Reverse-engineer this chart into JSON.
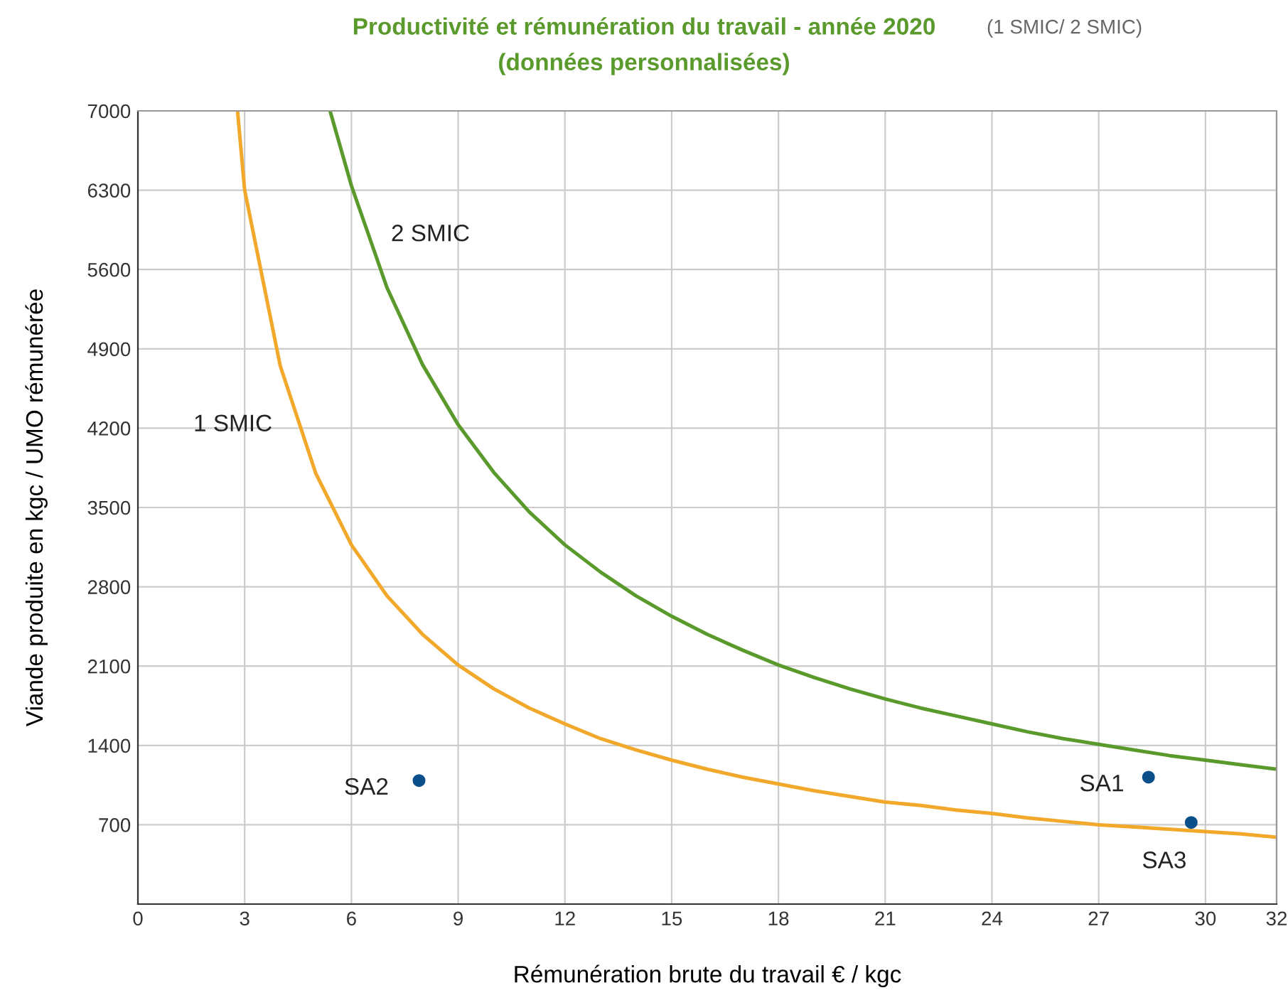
{
  "chart_data": {
    "type": "line",
    "title": "Productivité et rémunération du travail - année 2020",
    "subtitle": "(données personnalisées)",
    "xlabel": "Rémunération brute du travail € / kgc",
    "ylabel": "Viande produite en kgc / UMO rémunérée",
    "series": [
      {
        "name": "1 SMIC",
        "color": "#f2a82a",
        "x": [
          2.8,
          3,
          4,
          5,
          6,
          7,
          8,
          9,
          10,
          11,
          12,
          13,
          14,
          15,
          16,
          17,
          18,
          19,
          20,
          21,
          22,
          23,
          24,
          25,
          26,
          27,
          28,
          29,
          30,
          31,
          32
        ],
        "values": [
          7000,
          6300,
          4750,
          3800,
          3170,
          2720,
          2380,
          2110,
          1900,
          1730,
          1590,
          1460,
          1360,
          1270,
          1190,
          1120,
          1060,
          1000,
          950,
          900,
          870,
          830,
          800,
          760,
          730,
          700,
          680,
          660,
          640,
          620,
          590
        ]
      },
      {
        "name": "2 SMIC",
        "color": "#5a9a2c",
        "x": [
          5.4,
          6,
          7,
          8,
          9,
          10,
          11,
          12,
          13,
          14,
          15,
          16,
          17,
          18,
          19,
          20,
          21,
          22,
          23,
          24,
          25,
          26,
          27,
          28,
          29,
          30,
          31,
          32
        ],
        "values": [
          7000,
          6340,
          5440,
          4760,
          4230,
          3810,
          3460,
          3170,
          2930,
          2720,
          2540,
          2380,
          2240,
          2110,
          2000,
          1900,
          1810,
          1730,
          1660,
          1590,
          1520,
          1460,
          1410,
          1360,
          1310,
          1270,
          1230,
          1190
        ]
      },
      {
        "type": "scatter",
        "color": "#0b4f8a",
        "marker": "circle",
        "x": [
          28.4,
          7.9,
          29.6
        ],
        "values": [
          1120,
          1090,
          720
        ]
      }
    ],
    "annotations": [
      "(1 SMIC/ 2 SMIC)",
      {
        "text": "SA1",
        "x": 28.4,
        "y": 1120
      },
      {
        "text": "SA2",
        "x": 7.9,
        "y": 1090
      },
      {
        "text": "SA3",
        "x": 29.6,
        "y": 720
      }
    ],
    "xlim": [
      0,
      32
    ],
    "xticks": [
      0,
      3,
      6,
      9,
      12,
      15,
      18,
      21,
      24,
      27,
      30,
      32
    ],
    "ylim": [
      0,
      7000
    ],
    "yticks": [
      {
        "value": 0,
        "label": null
      },
      700,
      1400,
      2100,
      2800,
      3500,
      4200,
      4900,
      5600,
      6300,
      7000
    ],
    "grid": true,
    "marker": "none",
    "line_style": "solid"
  }
}
